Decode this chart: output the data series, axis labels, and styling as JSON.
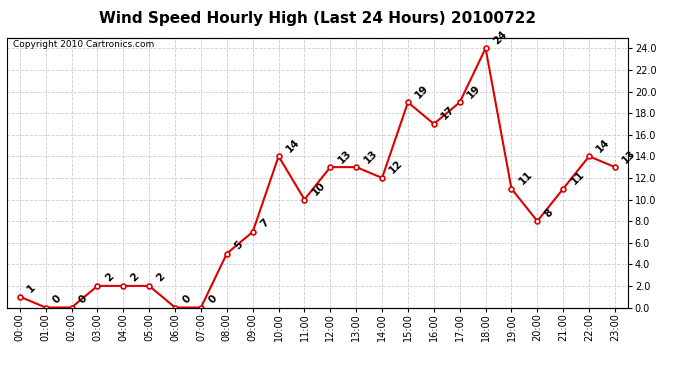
{
  "title": "Wind Speed Hourly High (Last 24 Hours) 20100722",
  "copyright": "Copyright 2010 Cartronics.com",
  "hours": [
    "00:00",
    "01:00",
    "02:00",
    "03:00",
    "04:00",
    "05:00",
    "06:00",
    "07:00",
    "08:00",
    "09:00",
    "10:00",
    "11:00",
    "12:00",
    "13:00",
    "14:00",
    "15:00",
    "16:00",
    "17:00",
    "18:00",
    "19:00",
    "20:00",
    "21:00",
    "22:00",
    "23:00"
  ],
  "values": [
    1,
    0,
    0,
    2,
    2,
    2,
    0,
    0,
    5,
    7,
    14,
    10,
    13,
    13,
    12,
    19,
    17,
    19,
    24,
    11,
    8,
    11,
    14,
    13
  ],
  "line_color": "#dd0000",
  "marker_color": "#dd0000",
  "bg_color": "#ffffff",
  "grid_color": "#cccccc",
  "ylim": [
    0.0,
    25.0
  ],
  "yticks": [
    0.0,
    2.0,
    4.0,
    6.0,
    8.0,
    10.0,
    12.0,
    14.0,
    16.0,
    18.0,
    20.0,
    22.0,
    24.0
  ],
  "title_fontsize": 11,
  "annotation_fontsize": 7.5,
  "tick_fontsize": 7,
  "copyright_fontsize": 6.5
}
